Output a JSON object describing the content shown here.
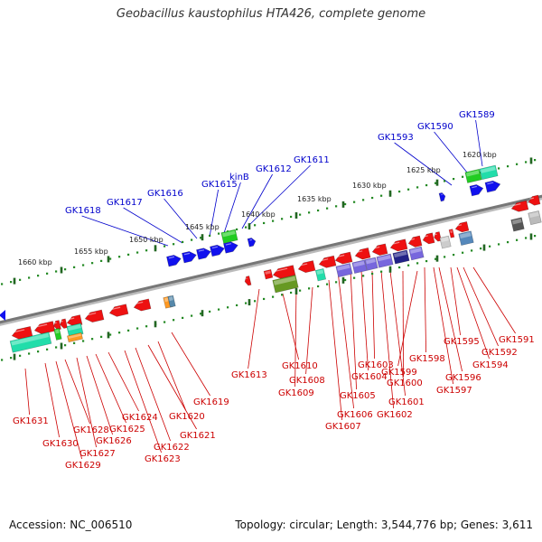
{
  "title": "Geobacillus kaustophilus HTA426, complete genome",
  "footer": {
    "accession": "Accession: NC_006510",
    "summary": "Topology: circular; Length: 3,544,776 bp; Genes: 3,611"
  },
  "colors": {
    "backbone": "#777777",
    "forward_gene_label": "#0000cc",
    "reverse_gene_label": "#cc0000",
    "tick": "#228822",
    "gene_red": "#ee1111",
    "gene_blue": "#1111ee",
    "gene_green": "#22cc22",
    "gene_teal": "#22ddaa",
    "gene_purple": "#7766dd",
    "gene_orange": "#ff9922",
    "gene_olive": "#669922",
    "gene_grey": "#888888"
  },
  "kbp_labels": [
    "1620 kbp",
    "1625 kbp",
    "1630 kbp",
    "1635 kbp",
    "1640 kbp",
    "1645 kbp",
    "1650 kbp",
    "1655 kbp",
    "1660 kbp"
  ],
  "forward_genes": [
    "GK1589",
    "GK1590",
    "GK1593",
    "GK1611",
    "GK1612",
    "kinB",
    "GK1615",
    "GK1616",
    "GK1617",
    "GK1618"
  ],
  "reverse_genes": [
    "GK1591",
    "GK1592",
    "GK1594",
    "GK1595",
    "GK1596",
    "GK1597",
    "GK1598",
    "GK1599",
    "GK1600",
    "GK1601",
    "GK1602",
    "GK1603",
    "GK1604",
    "GK1605",
    "GK1606",
    "GK1607",
    "GK1608",
    "GK1609",
    "GK1610",
    "GK1613",
    "GK1619",
    "GK1620",
    "GK1621",
    "GK1622",
    "GK1623",
    "GK1624",
    "GK1625",
    "GK1626",
    "GK1627",
    "GK1628",
    "GK1629",
    "GK1630",
    "GK1631"
  ]
}
